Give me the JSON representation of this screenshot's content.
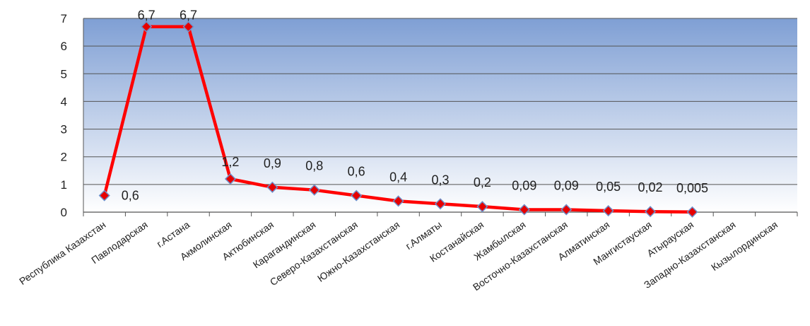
{
  "chart_data": {
    "type": "line",
    "title": "",
    "xlabel": "",
    "ylabel": "",
    "ylim": [
      0,
      7
    ],
    "yticks": [
      0,
      1,
      2,
      3,
      4,
      5,
      6,
      7
    ],
    "grid": true,
    "categories": [
      "Республика Казахстан",
      "Павлодарская",
      "г.Астана",
      "Акмолинская",
      "Актюбинская",
      "Карагандинская",
      "Северо-Казахстанская",
      "Южно-Казахстанская",
      "г.Алматы",
      "Костанайская",
      "Жамбылская",
      "Восточно-Казахстанская",
      "Алматинская",
      "Мангистауская",
      "Атырауская",
      "Западно-Казахстанская",
      "Кызылординская"
    ],
    "series": [
      {
        "name": "",
        "values": [
          0.6,
          6.7,
          6.7,
          1.2,
          0.9,
          0.8,
          0.6,
          0.4,
          0.3,
          0.2,
          0.09,
          0.09,
          0.05,
          0.02,
          0.005,
          null,
          null
        ],
        "labels": [
          "0,6",
          "6,7",
          "6,7",
          "1,2",
          "0,9",
          "0,8",
          "0,6",
          "0,4",
          "0,3",
          "0,2",
          "0,09",
          "0,09",
          "0,05",
          "0,02",
          "0,005",
          "",
          ""
        ]
      }
    ],
    "colors": {
      "line": "#ff0000",
      "marker_fill": "#e60000",
      "marker_stroke": "#6f8fc9",
      "plot_top": "#7f9fd4",
      "plot_bottom": "#ffffff",
      "grid": "#555555"
    }
  }
}
